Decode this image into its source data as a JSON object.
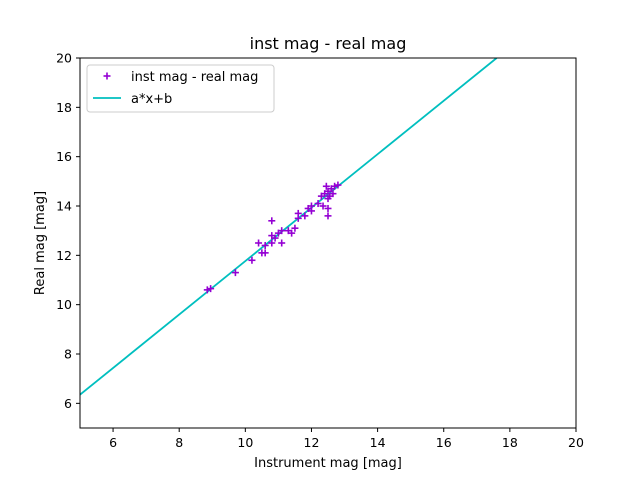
{
  "chart_data": {
    "type": "scatter",
    "title": "inst mag - real mag",
    "xlabel": "Instrument mag [mag]",
    "ylabel": "Real mag [mag]",
    "xlim": [
      5,
      20
    ],
    "ylim": [
      5,
      20
    ],
    "xticks": [
      6,
      8,
      10,
      12,
      14,
      16,
      18,
      20
    ],
    "yticks": [
      6,
      8,
      10,
      12,
      14,
      16,
      18,
      20
    ],
    "grid": false,
    "legend_position": "upper-left",
    "series": [
      {
        "name": "inst mag - real mag",
        "kind": "scatter",
        "marker": "plus",
        "color": "#9400d3",
        "points": [
          [
            8.85,
            10.6
          ],
          [
            8.95,
            10.65
          ],
          [
            9.7,
            11.3
          ],
          [
            10.2,
            11.8
          ],
          [
            10.4,
            12.5
          ],
          [
            10.5,
            12.1
          ],
          [
            10.6,
            12.1
          ],
          [
            10.6,
            12.4
          ],
          [
            10.8,
            12.5
          ],
          [
            10.8,
            12.8
          ],
          [
            10.8,
            13.4
          ],
          [
            10.9,
            12.7
          ],
          [
            11.0,
            12.9
          ],
          [
            11.1,
            12.5
          ],
          [
            11.1,
            13.0
          ],
          [
            11.3,
            13.0
          ],
          [
            11.4,
            12.9
          ],
          [
            11.5,
            13.1
          ],
          [
            11.6,
            13.5
          ],
          [
            11.6,
            13.7
          ],
          [
            11.8,
            13.6
          ],
          [
            11.9,
            13.9
          ],
          [
            12.0,
            14.0
          ],
          [
            12.0,
            13.8
          ],
          [
            12.2,
            14.1
          ],
          [
            12.3,
            14.4
          ],
          [
            12.35,
            14.0
          ],
          [
            12.4,
            14.5
          ],
          [
            12.45,
            14.8
          ],
          [
            12.5,
            14.6
          ],
          [
            12.5,
            14.3
          ],
          [
            12.5,
            13.9
          ],
          [
            12.5,
            13.6
          ],
          [
            12.55,
            14.4
          ],
          [
            12.6,
            14.7
          ],
          [
            12.65,
            14.5
          ],
          [
            12.7,
            14.8
          ],
          [
            12.8,
            14.85
          ]
        ]
      },
      {
        "name": "a*x+b",
        "kind": "line",
        "color": "#00bfbf",
        "points": [
          [
            5,
            6.35
          ],
          [
            17.6,
            20.0
          ]
        ]
      }
    ]
  }
}
